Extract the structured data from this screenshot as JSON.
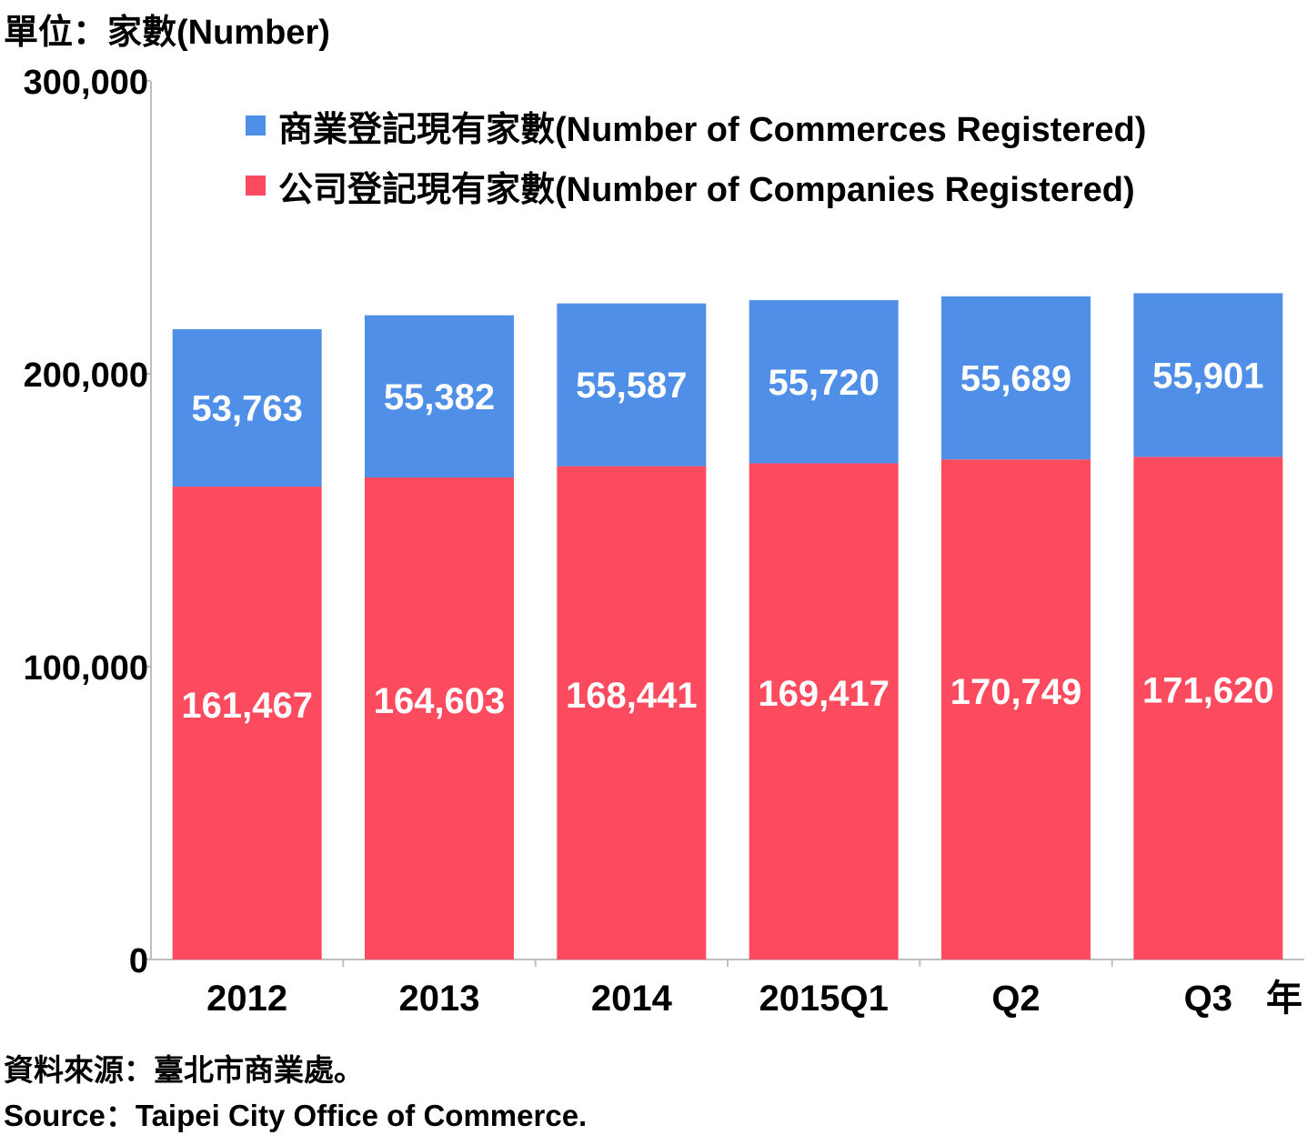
{
  "unit_label": "單位：家數(Number)",
  "source": {
    "zh": "資料來源：臺北市商業處。",
    "en": "Source：Taipei City Office of Commerce."
  },
  "colors": {
    "commerce": "#4f8fe8",
    "company": "#fc4b5e",
    "axis": "#bfbfbf"
  },
  "chart_data": {
    "type": "bar",
    "stacked": true,
    "categories": [
      "2012",
      "2013",
      "2014",
      "2015Q1",
      "Q2",
      "Q3"
    ],
    "x_unit_label": "年",
    "ylabel": "單位：家數(Number)",
    "ylim": [
      0,
      300000
    ],
    "y_ticks": [
      0,
      100000,
      200000,
      300000
    ],
    "y_tick_labels": [
      "0",
      "100,000",
      "200,000",
      "300,000"
    ],
    "grid": false,
    "legend_position": "top",
    "series": [
      {
        "name": "公司登記現有家數(Number of Companies Registered)",
        "values": [
          161467,
          164603,
          168441,
          169417,
          170749,
          171620
        ],
        "labels": [
          "161,467",
          "164,603",
          "168,441",
          "169,417",
          "170,749",
          "171,620"
        ]
      },
      {
        "name": "商業登記現有家數(Number of Commerces Registered)",
        "values": [
          53763,
          55382,
          55587,
          55720,
          55689,
          55901
        ],
        "labels": [
          "53,763",
          "55,382",
          "55,587",
          "55,720",
          "55,689",
          "55,901"
        ]
      }
    ]
  }
}
